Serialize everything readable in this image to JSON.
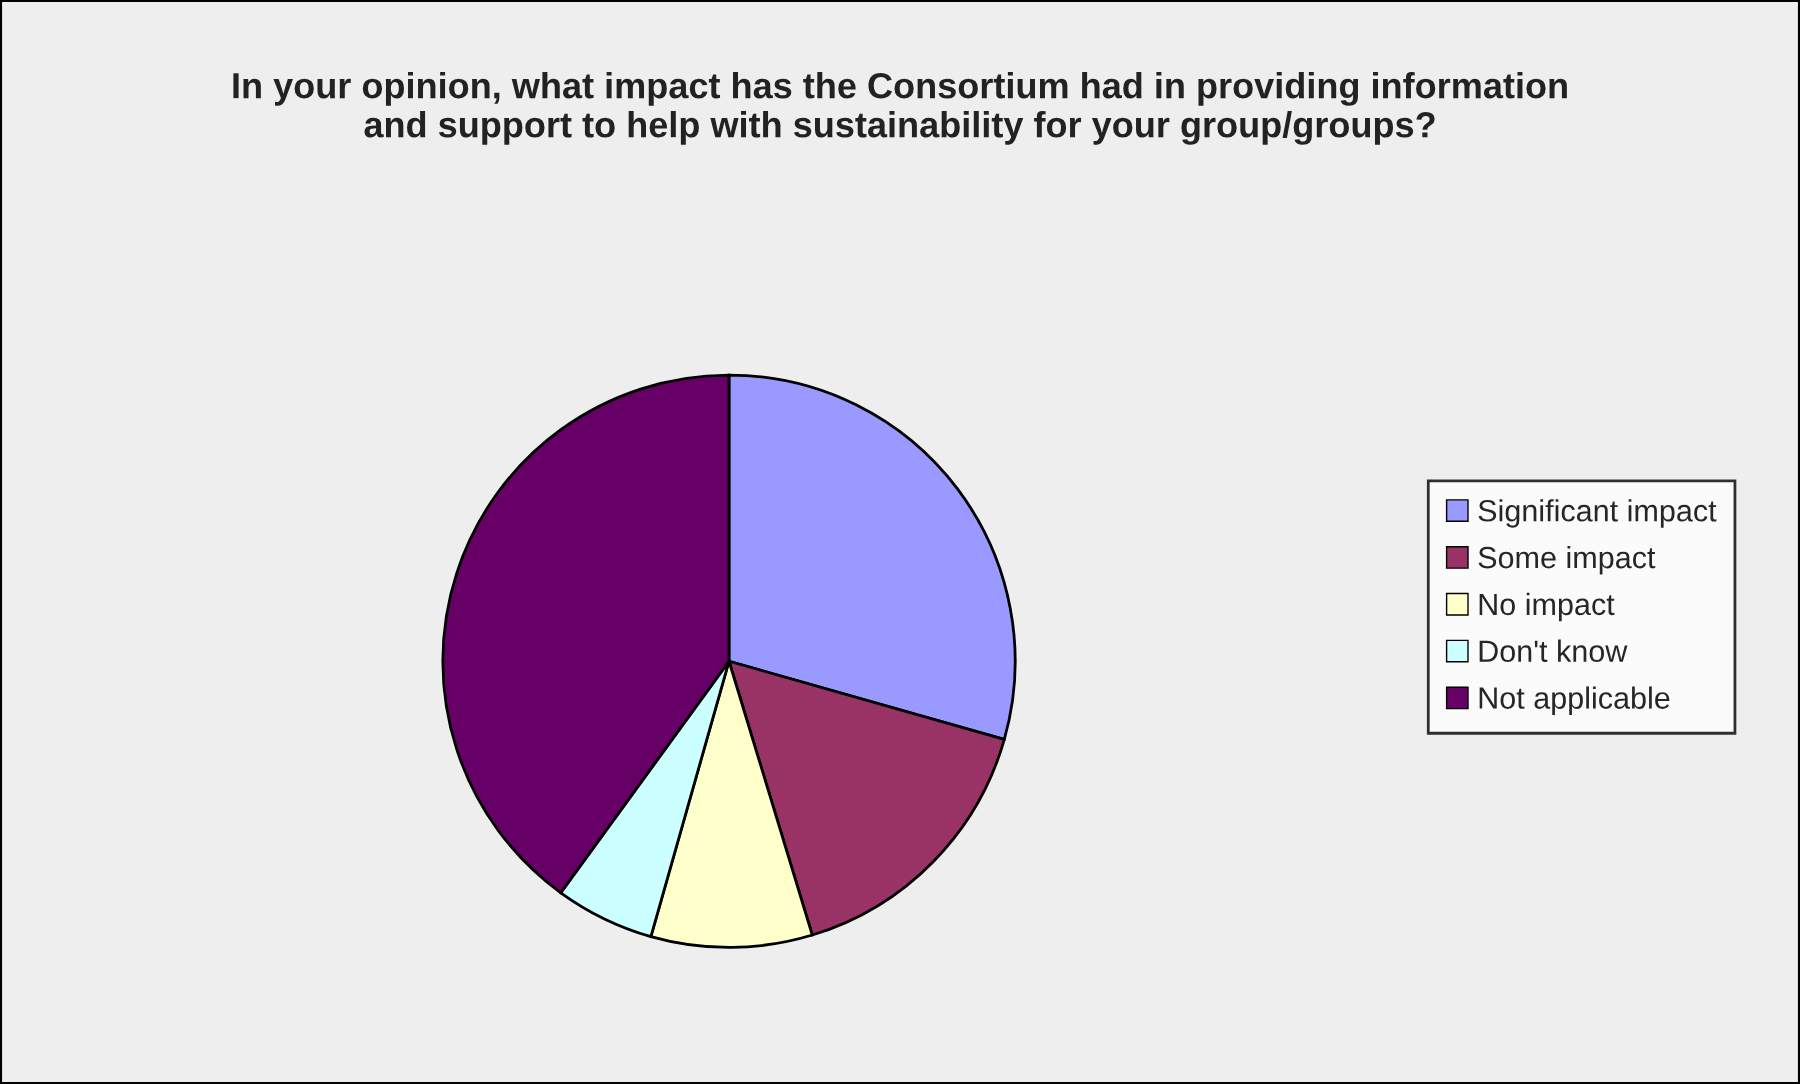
{
  "chart_data": {
    "type": "pie",
    "title": "In your opinion, what impact has the Consortium had in providing information\nand support to help with sustainability for your group/groups?",
    "categories": [
      "Significant impact",
      "Some impact",
      "No impact",
      "Don't know",
      "Not applicable"
    ],
    "values": [
      29.4,
      15.9,
      9.1,
      5.6,
      40.0
    ],
    "colors": [
      "#9999ff",
      "#993366",
      "#ffffcc",
      "#ccffff",
      "#660066"
    ],
    "legend": "right"
  }
}
